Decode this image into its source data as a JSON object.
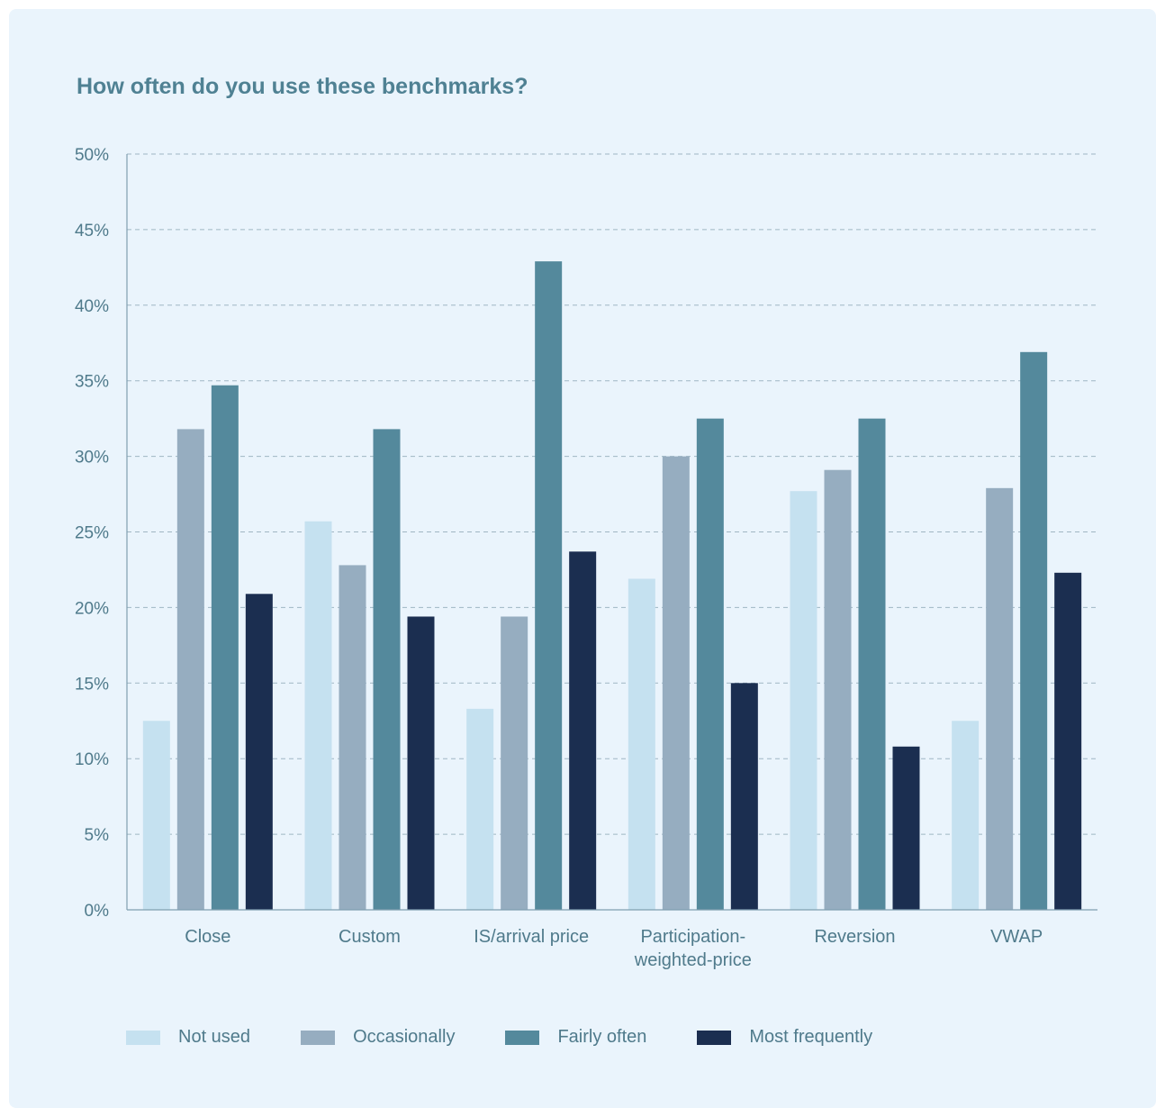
{
  "chart_data": {
    "type": "bar",
    "title": "How often do you use these benchmarks?",
    "xlabel": "",
    "ylabel": "",
    "ylim": [
      0,
      50
    ],
    "yticks": [
      0,
      5,
      10,
      15,
      20,
      25,
      30,
      35,
      40,
      45,
      50
    ],
    "ytick_labels": [
      "0%",
      "5%",
      "10%",
      "15%",
      "20%",
      "25%",
      "30%",
      "35%",
      "40%",
      "45%",
      "50%"
    ],
    "grid": true,
    "legend_position": "bottom-left",
    "categories": [
      [
        "Close"
      ],
      [
        "Custom"
      ],
      [
        "IS/arrival price"
      ],
      [
        "Participation-",
        "weighted-price"
      ],
      [
        "Reversion"
      ],
      [
        "VWAP"
      ]
    ],
    "series": [
      {
        "name": "Not used",
        "color": "#c5e1f0",
        "values": [
          12.5,
          25.7,
          13.3,
          21.9,
          27.7,
          12.5
        ]
      },
      {
        "name": "Occasionally",
        "color": "#96adc0",
        "values": [
          31.8,
          22.8,
          19.4,
          30.0,
          29.1,
          27.9
        ]
      },
      {
        "name": "Fairly often",
        "color": "#54899c",
        "values": [
          34.7,
          31.8,
          42.9,
          32.5,
          32.5,
          36.9
        ]
      },
      {
        "name": "Most frequently",
        "color": "#1b2e50",
        "values": [
          20.9,
          19.4,
          23.7,
          15.0,
          10.8,
          22.3
        ]
      }
    ]
  }
}
